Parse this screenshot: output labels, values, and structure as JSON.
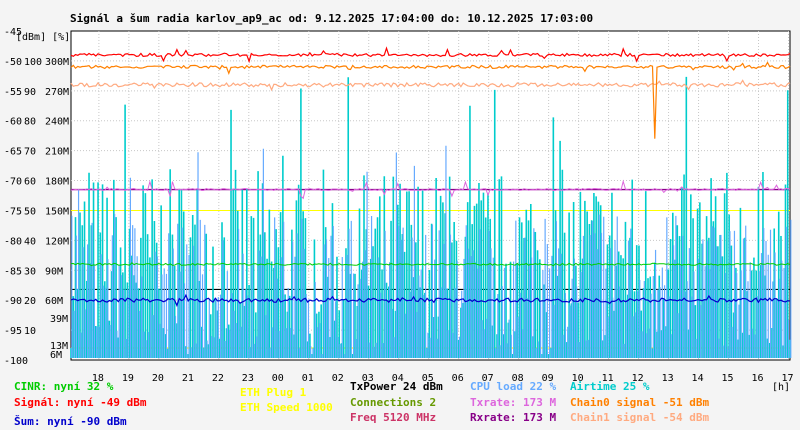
{
  "chart_data": {
    "type": "line",
    "title": "Signál a šum radia karlov_ap9_ac od: 9.12.2025 17:04:00 do: 10.12.2025 17:03:00",
    "x_unit": "[h]",
    "left_units": "[dBm] [%]",
    "x_ticks": [
      "18",
      "19",
      "20",
      "21",
      "22",
      "23",
      "00",
      "01",
      "02",
      "03",
      "04",
      "05",
      "06",
      "07",
      "08",
      "09",
      "10",
      "11",
      "12",
      "13",
      "14",
      "15",
      "16",
      "17"
    ],
    "x_range": [
      17.07,
      41.05
    ],
    "y_dbm_ticks": [
      "-45",
      "-50",
      "-55",
      "-60",
      "-65",
      "-70",
      "-75",
      "-80",
      "-85",
      "-90",
      "-95",
      "-100"
    ],
    "y_dbm_range": [
      -100,
      -45
    ],
    "y_pct_ticks": [
      "100",
      "90",
      "80",
      "70",
      "60",
      "50",
      "40",
      "30",
      "20",
      "10"
    ],
    "y_pct_range": [
      0,
      110
    ],
    "y_rate_ticks": [
      "300M",
      "270M",
      "240M",
      "210M",
      "180M",
      "150M",
      "120M",
      "90M",
      "60M"
    ],
    "y_rate_range": [
      0,
      330
    ],
    "y_rate_extra_ticks": [
      "39M",
      "13M",
      "6M"
    ],
    "guide_levels": {
      "eth_speed_mbps": 1000,
      "eth_plug": 1,
      "airtime_pct": 25
    },
    "series": [
      {
        "key": "signal",
        "approx_value": -49,
        "axis": "dBm",
        "color": "#ff0000"
      },
      {
        "key": "chain0",
        "approx_value": -51,
        "axis": "dBm",
        "color": "#ff8000"
      },
      {
        "key": "chain1",
        "approx_value": -54,
        "axis": "dBm",
        "color": "#ffaa80"
      },
      {
        "key": "noise",
        "approx_value": -90,
        "axis": "dBm",
        "color": "#0000cc"
      },
      {
        "key": "cinr",
        "approx_value": 32,
        "axis": "pct",
        "color": "#00cc00"
      },
      {
        "key": "cpu",
        "approx_value": 22,
        "axis": "pct",
        "color": "#66aaff"
      },
      {
        "key": "airtime",
        "approx_value": 25,
        "axis": "pct",
        "color": "#00cccc"
      },
      {
        "key": "txrate",
        "approx_value": 173,
        "axis": "rate",
        "color": "#dd66dd"
      },
      {
        "key": "rxrate",
        "approx_value": 173,
        "axis": "rate",
        "color": "#880088"
      }
    ],
    "legend": {
      "cinr": "CINR: nyní 32 %",
      "signal": "Signál: nyní -49 dBm",
      "noise": "Šum: nyní -90 dBm",
      "eth_plug": "ETH Plug 1",
      "eth_speed": "ETH Speed 1000",
      "txpower": "TxPower 24 dBm",
      "connections": "Connections 2",
      "freq": "Freq 5120 MHz",
      "cpu": "CPU load 22 %",
      "txrate": "Txrate: 173 M",
      "rxrate": "Rxrate: 173 M",
      "airtime": "Airtime 25 %",
      "chain0": "Chain0 signal -51 dBm",
      "chain1": "Chain1 signal -54 dBm"
    },
    "colors": {
      "background": "#f4f4f4",
      "plot_bg": "#ffffff",
      "grid": "#c8c8c8",
      "eth_speed": "#ffff00",
      "txpower": "#000000",
      "connections": "#669900",
      "freq": "#cc3366",
      "rate_extra": "#cc66cc"
    }
  }
}
